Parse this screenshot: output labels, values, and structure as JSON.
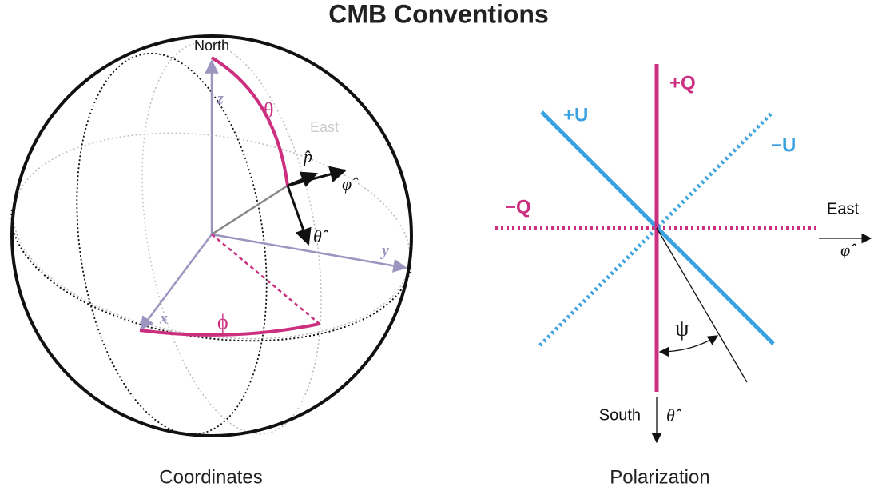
{
  "title": "CMB Conventions",
  "coordinates": {
    "caption": "Coordinates",
    "north": "North",
    "east": "East",
    "z": "z",
    "y": "y",
    "x": "x",
    "theta": "θ",
    "phi": "ϕ",
    "p_hat": "p̂",
    "phi_hat": "φ̂",
    "theta_hat": "θ̂"
  },
  "polarization": {
    "caption": "Polarization",
    "plus_q": "+Q",
    "minus_q": "−Q",
    "plus_u": "+U",
    "minus_u": "−U",
    "east": "East",
    "phi_hat": "φ̂",
    "south": "South",
    "theta_hat": "θ̂",
    "psi": "ψ"
  }
}
